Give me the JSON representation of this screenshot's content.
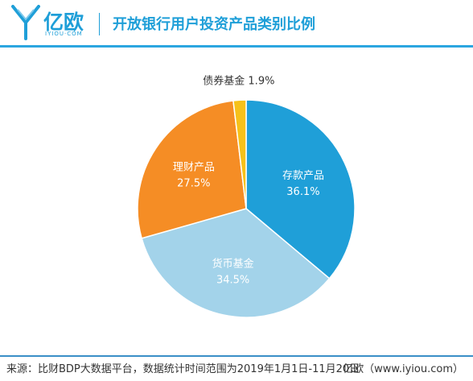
{
  "brand": {
    "name": "亿欧",
    "sub": "IYIOU·COM"
  },
  "title": "开放银行用户投资产品类别比例",
  "source": "来源：比财BDP大数据平台，数据统计时间范围为2019年1月1日-11月20日",
  "footer_brand": "亿欧（www.iyiou.com）",
  "colors": {
    "accent": "#1f9fd8"
  },
  "chart_data": {
    "type": "pie",
    "title": "",
    "slices": [
      {
        "label": "存款产品",
        "value": 36.1,
        "pct_text": "36.1%",
        "color": "#1f9fd8"
      },
      {
        "label": "货币基金",
        "value": 34.5,
        "pct_text": "34.5%",
        "color": "#a3d3ea"
      },
      {
        "label": "理财产品",
        "value": 27.5,
        "pct_text": "27.5%",
        "color": "#f58d25"
      },
      {
        "label": "债券基金",
        "value": 1.9,
        "pct_text": "1.9%",
        "color": "#f6c11a"
      }
    ]
  }
}
